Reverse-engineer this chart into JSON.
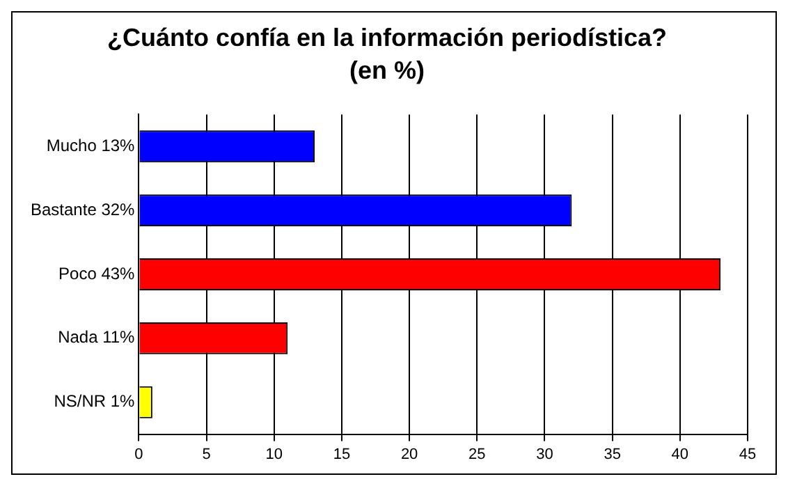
{
  "chart_data": {
    "type": "bar",
    "orientation": "horizontal",
    "title": "¿Cuánto confía en la información periodística?",
    "subtitle": "(en %)",
    "categories": [
      "Mucho 13%",
      "Bastante 32%",
      "Poco 43%",
      "Nada 11%",
      "NS/NR 1%"
    ],
    "values": [
      13,
      32,
      43,
      11,
      1
    ],
    "colors": [
      "#0000ff",
      "#0000ff",
      "#ff0000",
      "#ff0000",
      "#ffff00"
    ],
    "xlim": [
      0,
      45
    ],
    "xticks": [
      0,
      5,
      10,
      15,
      20,
      25,
      30,
      35,
      40,
      45
    ],
    "grid": "x",
    "legend": false
  }
}
